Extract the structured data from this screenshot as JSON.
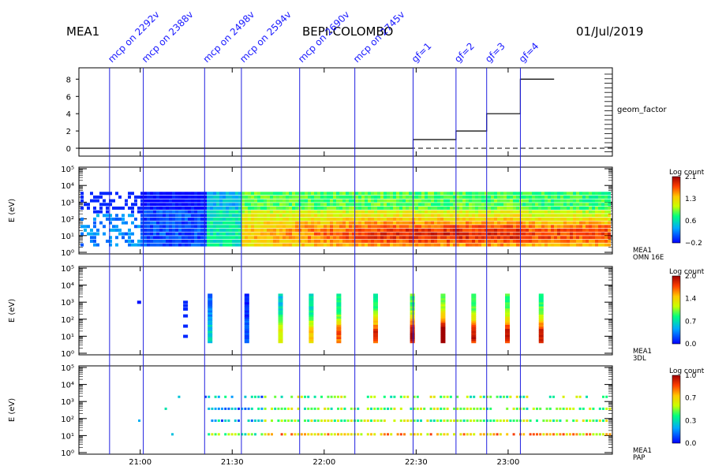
{
  "header": {
    "instrument": "MEA1",
    "mission": "BEPI-COLOMBO",
    "date": "01/Jul/2019"
  },
  "events": [
    {
      "label": "mcp on 2292v",
      "time": "20:50"
    },
    {
      "label": "mcp on 2388v",
      "time": "21:01"
    },
    {
      "label": "mcp on 2498v",
      "time": "21:21"
    },
    {
      "label": "mcp on 2594v",
      "time": "21:33"
    },
    {
      "label": "mcp on 2690v",
      "time": "21:52"
    },
    {
      "label": "mcp on 2745v",
      "time": "22:10"
    },
    {
      "label": "gf=1",
      "time": "22:29"
    },
    {
      "label": "gf=2",
      "time": "22:43"
    },
    {
      "label": "gf=3",
      "time": "22:53"
    },
    {
      "label": "gf=4",
      "time": "23:04"
    }
  ],
  "chart_data": [
    {
      "type": "line",
      "name": "geom_factor panel",
      "series": [
        {
          "name": "geom_factor",
          "x": [
            "20:40",
            "22:29",
            "22:29",
            "22:43",
            "22:43",
            "22:53",
            "22:53",
            "23:04",
            "23:04",
            "23:15"
          ],
          "values": [
            0,
            0,
            1,
            1,
            2,
            2,
            4,
            4,
            8,
            8
          ]
        }
      ],
      "yticks": [
        "0",
        "2",
        "4",
        "6",
        "8"
      ],
      "ylim": [
        -1,
        9
      ],
      "label": "geom_factor"
    },
    {
      "type": "heatmap",
      "ylabel": "E (eV)",
      "yticks": [
        "10⁰",
        "10¹",
        "10²",
        "10³",
        "10⁴",
        "10⁵"
      ],
      "colorbar": {
        "title": "Log count",
        "ticks": [
          "2.1",
          "1.3",
          "0.6",
          "−0.2"
        ]
      },
      "tag": [
        "MEA1",
        "OMN 16E"
      ]
    },
    {
      "type": "heatmap",
      "ylabel": "E (eV)",
      "yticks": [
        "10⁰",
        "10¹",
        "10²",
        "10³",
        "10⁴",
        "10⁵"
      ],
      "colorbar": {
        "title": "Log count",
        "ticks": [
          "2.0",
          "1.4",
          "0.7",
          "0.0"
        ]
      },
      "tag": [
        "MEA1",
        "3DL"
      ]
    },
    {
      "type": "heatmap",
      "ylabel": "E (eV)",
      "yticks": [
        "10⁰",
        "10¹",
        "10²",
        "10³",
        "10⁴",
        "10⁵"
      ],
      "colorbar": {
        "title": "Log count",
        "ticks": [
          "1.0",
          "0.7",
          "0.3",
          "0.0"
        ]
      },
      "tag": [
        "MEA1",
        "PAP"
      ]
    }
  ],
  "xaxis": {
    "ticks": [
      "21:00",
      "21:30",
      "22:00",
      "22:30",
      "23:00"
    ]
  }
}
